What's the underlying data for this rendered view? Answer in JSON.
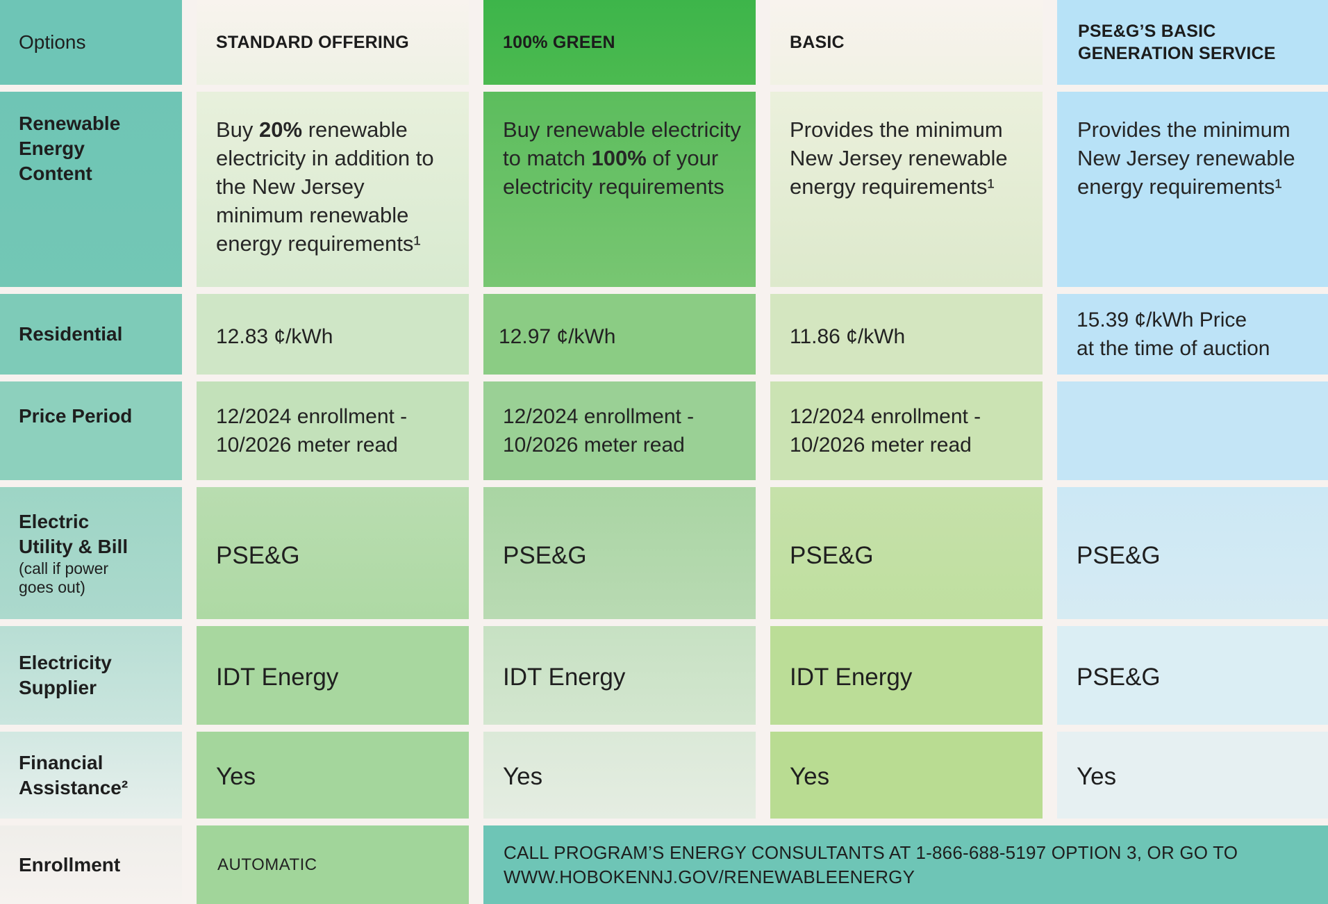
{
  "columns": {
    "options": "Options",
    "standard": "STANDARD OFFERING",
    "green": "100% GREEN",
    "basic": "BASIC",
    "pseg_line1": "PSE&G’S BASIC",
    "pseg_line2": "GENERATION SERVICE"
  },
  "rows": {
    "renewable": {
      "label_l1": "Renewable",
      "label_l2": "Energy",
      "label_l3": "Content",
      "standard": {
        "pre": "Buy ",
        "bold": "20%",
        "post": " renewable electricity in addition to the New Jersey minimum renewable energy requirements¹"
      },
      "green": {
        "pre": "Buy renewable electricity to match ",
        "bold": "100%",
        "post": " of your electricity requirements"
      },
      "basic": "Provides the minimum New Jersey renewable energy requirements¹",
      "pseg": "Provides the minimum New Jersey renewable energy requirements¹"
    },
    "residential": {
      "label": "Residential",
      "standard": "12.83 ¢/kWh",
      "green": "12.97 ¢/kWh",
      "basic": "11.86 ¢/kWh",
      "pseg_l1": "15.39 ¢/kWh Price",
      "pseg_l2": "at the time of auction"
    },
    "price_period": {
      "label": "Price Period",
      "standard_l1": "12/2024 enrollment -",
      "standard_l2": "10/2026 meter read",
      "green_l1": "12/2024 enrollment -",
      "green_l2": "10/2026 meter read",
      "basic_l1": "12/2024 enrollment -",
      "basic_l2": "10/2026 meter read",
      "pseg": ""
    },
    "utility": {
      "label_l1": "Electric",
      "label_l2": "Utility & Bill",
      "note_l1": "(call if power",
      "note_l2": "goes out)",
      "standard": "PSE&G",
      "green": "PSE&G",
      "basic": "PSE&G",
      "pseg": "PSE&G"
    },
    "supplier": {
      "label_l1": "Electricity",
      "label_l2": "Supplier",
      "standard": "IDT Energy",
      "green": "IDT Energy",
      "basic": "IDT Energy",
      "pseg": "PSE&G"
    },
    "financial": {
      "label_l1": "Financial",
      "label_l2": "Assistance²",
      "standard": "Yes",
      "green": "Yes",
      "basic": "Yes",
      "pseg": "Yes"
    },
    "enrollment": {
      "label": "Enrollment",
      "standard": "AUTOMATIC",
      "call_l1": "CALL PROGRAM’S ENERGY CONSULTANTS AT 1-866-688-5197 OPTION 3, OR GO TO",
      "call_l2": "WWW.HOBOKENNJ.GOV/RENEWABLEENERGY"
    }
  }
}
